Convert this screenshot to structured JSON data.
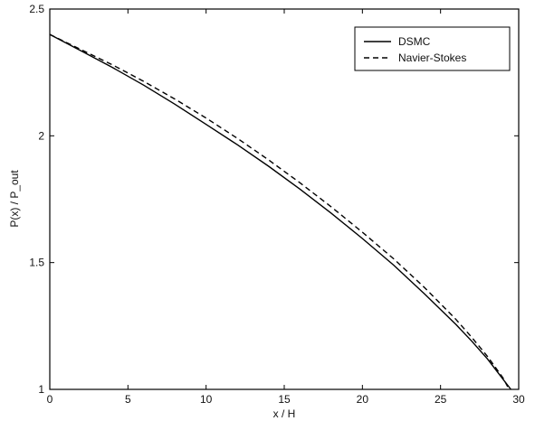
{
  "chart_data": {
    "type": "line",
    "title": "",
    "xlabel": "x / H",
    "ylabel": "P(x) / P_out",
    "xlim": [
      0,
      30
    ],
    "ylim": [
      1,
      2.5
    ],
    "xticks": [
      0,
      5,
      10,
      15,
      20,
      25,
      30
    ],
    "yticks": [
      1,
      1.5,
      2,
      2.5
    ],
    "xtick_labels": [
      "0",
      "5",
      "10",
      "15",
      "20",
      "25",
      "30"
    ],
    "ytick_labels": [
      "1",
      "1.5",
      "2",
      "2.5"
    ],
    "grid": false,
    "legend_position": "top-right",
    "series": [
      {
        "name": "DSMC",
        "style": "solid",
        "color": "#000000",
        "x": [
          0,
          2,
          4,
          6,
          8,
          10,
          12,
          14,
          16,
          18,
          20,
          22,
          24,
          26,
          27,
          28,
          29,
          29.5
        ],
        "y": [
          2.4,
          2.335,
          2.27,
          2.2,
          2.125,
          2.045,
          1.965,
          1.88,
          1.79,
          1.695,
          1.595,
          1.49,
          1.375,
          1.255,
          1.19,
          1.12,
          1.04,
          0.99
        ]
      },
      {
        "name": "Navier-Stokes",
        "style": "dashed",
        "color": "#000000",
        "x": [
          0,
          2,
          4,
          6,
          8,
          10,
          12,
          14,
          16,
          18,
          20,
          22,
          24,
          26,
          27,
          28,
          29,
          29.3
        ],
        "y": [
          2.4,
          2.34,
          2.28,
          2.215,
          2.145,
          2.07,
          1.99,
          1.905,
          1.815,
          1.72,
          1.62,
          1.515,
          1.4,
          1.275,
          1.205,
          1.13,
          1.045,
          1.01
        ]
      }
    ]
  }
}
